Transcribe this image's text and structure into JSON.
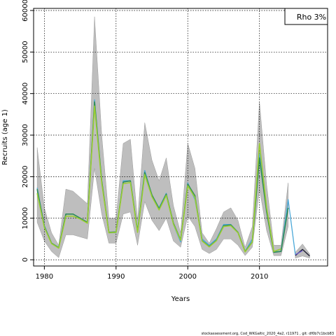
{
  "chart_data": {
    "type": "line",
    "title": "",
    "xlabel": "Years",
    "ylabel": "Recruits (age 1)",
    "xlim": [
      1978.5,
      2019.5
    ],
    "ylim": [
      -1500,
      60500
    ],
    "xticks": [
      1980,
      1990,
      2000,
      2010
    ],
    "yticks": [
      0,
      10000,
      20000,
      30000,
      40000,
      50000,
      60000
    ],
    "grid": true,
    "legend_position": "top-right",
    "legend_text": "Rho 3%",
    "footer": "stockassessment.org, Cod_WKGaltic_2020_4a2, r11971 , git: df0b7c1bcb83",
    "band": {
      "color": "#bebebe",
      "x": [
        1979,
        1980,
        1981,
        1982,
        1983,
        1984,
        1985,
        1986,
        1987,
        1988,
        1989,
        1990,
        1991,
        1992,
        1993,
        1994,
        1995,
        1996,
        1997,
        1998,
        1999,
        2000,
        2001,
        2002,
        2003,
        2004,
        2005,
        2006,
        2007,
        2008,
        2009,
        2010,
        2011,
        2012,
        2013,
        2014
      ],
      "upper": [
        27000,
        12500,
        6500,
        3500,
        17000,
        16500,
        15000,
        13500,
        58500,
        30000,
        10000,
        10000,
        28000,
        29000,
        9500,
        33000,
        24000,
        19000,
        24500,
        13000,
        6500,
        28000,
        22000,
        6500,
        4000,
        7500,
        11500,
        12500,
        9500,
        3000,
        8000,
        38000,
        18000,
        3500,
        3500,
        18500
      ],
      "lower": [
        9000,
        4500,
        2000,
        500,
        6000,
        6000,
        5500,
        5000,
        22000,
        11000,
        4000,
        4000,
        11000,
        11500,
        3500,
        14000,
        9500,
        7000,
        10000,
        4500,
        3000,
        10500,
        8000,
        2500,
        1500,
        2500,
        5000,
        5000,
        3500,
        1000,
        3000,
        17000,
        7000,
        1000,
        1000,
        8000
      ]
    },
    "series": [
      {
        "color": "#4aa8d8",
        "width": 1.3,
        "x": [
          1979,
          1980,
          1981,
          1982,
          1983,
          1984,
          1985,
          1986,
          1987,
          1988,
          1989,
          1990,
          1991,
          1992,
          1993,
          1994,
          1995,
          1996,
          1997,
          1998,
          1999,
          2000,
          2001,
          2002,
          2003,
          2004,
          2005,
          2006,
          2007,
          2008,
          2009,
          2010,
          2011,
          2012,
          2013,
          2014,
          2015
        ],
        "values": [
          17300,
          8200,
          4000,
          3000,
          11000,
          11000,
          10000,
          9000,
          38500,
          19000,
          6500,
          6500,
          19000,
          19000,
          7000,
          21500,
          15500,
          12500,
          16000,
          8500,
          4300,
          18500,
          14500,
          5000,
          3500,
          5000,
          8500,
          8500,
          6500,
          2000,
          5000,
          25500,
          12000,
          2000,
          2000,
          14500,
          1200
        ]
      },
      {
        "color": "#2e8b57",
        "width": 1.6,
        "x": [
          1979,
          1980,
          1981,
          1982,
          1983,
          1984,
          1985,
          1986,
          1987,
          1988,
          1989,
          1990,
          1991,
          1992,
          1993,
          1994,
          1995,
          1996,
          1997,
          1998,
          1999,
          2000,
          2001,
          2002,
          2003,
          2004,
          2005,
          2006,
          2007,
          2008,
          2009,
          2010,
          2011,
          2012,
          2013,
          2014
        ],
        "values": [
          17000,
          8000,
          4000,
          2900,
          11000,
          11000,
          10000,
          9000,
          38000,
          19000,
          6600,
          6700,
          18700,
          19000,
          6800,
          21000,
          15600,
          12300,
          15800,
          8800,
          4800,
          18200,
          15400,
          4600,
          3200,
          4700,
          8200,
          8400,
          6600,
          2000,
          4300,
          24500,
          11500,
          1800,
          2000,
          12500
        ]
      },
      {
        "color": "#9acd32",
        "width": 1.6,
        "x": [
          1979,
          1980,
          1981,
          1982,
          1983,
          1984,
          1985,
          1986,
          1987,
          1988,
          1989,
          1990,
          1991,
          1992,
          1993,
          1994,
          1995,
          1996,
          1997,
          1998,
          1999,
          2000,
          2001,
          2002,
          2003,
          2004,
          2005,
          2006,
          2007,
          2008,
          2009,
          2010,
          2011,
          2012,
          2013
        ],
        "values": [
          16000,
          7800,
          3900,
          2800,
          10500,
          10500,
          9800,
          8800,
          37000,
          18500,
          6500,
          6600,
          18300,
          18600,
          6600,
          20500,
          15200,
          12000,
          15500,
          8600,
          4700,
          17800,
          15000,
          4500,
          3100,
          4600,
          8000,
          8200,
          6500,
          1900,
          4200,
          28000,
          12500,
          2000,
          2600
        ]
      },
      {
        "color": "#1a1a2e",
        "width": 1.3,
        "x": [
          2015,
          2016,
          2017
        ],
        "values": [
          1000,
          2500,
          900
        ]
      },
      {
        "color": "#6a5acd",
        "width": 1.3,
        "x": [
          2015,
          2016
        ],
        "values": [
          1200,
          2200
        ]
      }
    ],
    "tail_band": {
      "color": "#bebebe",
      "x": [
        2015,
        2016,
        2017
      ],
      "upper": [
        1800,
        3800,
        1400
      ],
      "lower": [
        400,
        900,
        400
      ]
    }
  }
}
